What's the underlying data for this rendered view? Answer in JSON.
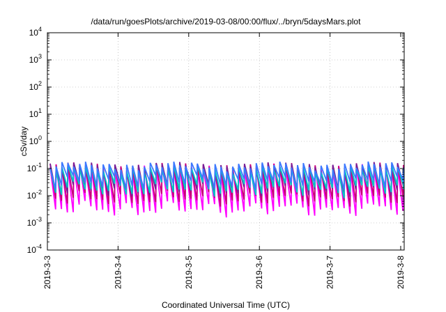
{
  "chart_data": {
    "type": "line",
    "title": "/data/run/goesPlots/archive/2019-03-08/00:00/flux/../bryn/5daysMars.plot",
    "xlabel": "Coordinated Universal Time (UTC)",
    "ylabel": "cSv/day",
    "y_scale": "log",
    "ylim": [
      0.0001,
      10000
    ],
    "y_ticks": [
      {
        "base": "10",
        "exp": "-4",
        "value": 0.0001
      },
      {
        "base": "10",
        "exp": "-3",
        "value": 0.001
      },
      {
        "base": "10",
        "exp": "-2",
        "value": 0.01
      },
      {
        "base": "10",
        "exp": "-1",
        "value": 0.1
      },
      {
        "base": "10",
        "exp": "0",
        "value": 1
      },
      {
        "base": "10",
        "exp": "1",
        "value": 10
      },
      {
        "base": "10",
        "exp": "2",
        "value": 100
      },
      {
        "base": "10",
        "exp": "3",
        "value": 1000
      },
      {
        "base": "10",
        "exp": "4",
        "value": 10000
      }
    ],
    "x_ticks": [
      "2019-3-3",
      "2019-3-4",
      "2019-3-5",
      "2019-3-6",
      "2019-3-7",
      "2019-3-8"
    ],
    "xlim": [
      "2019-03-03T00:00",
      "2019-03-08T01:00"
    ],
    "grid": true,
    "legend": "none",
    "series_colors": [
      "#ff00ff",
      "#c80078",
      "#781e96",
      "#00c8c8",
      "#3c78ff"
    ],
    "sawtooth": {
      "peaks_per_day": 12,
      "decay_factors": [
        35,
        16,
        8,
        6,
        4.5
      ],
      "peak_values": [
        0.11,
        0.12,
        0.125,
        0.1,
        0.13
      ]
    }
  }
}
